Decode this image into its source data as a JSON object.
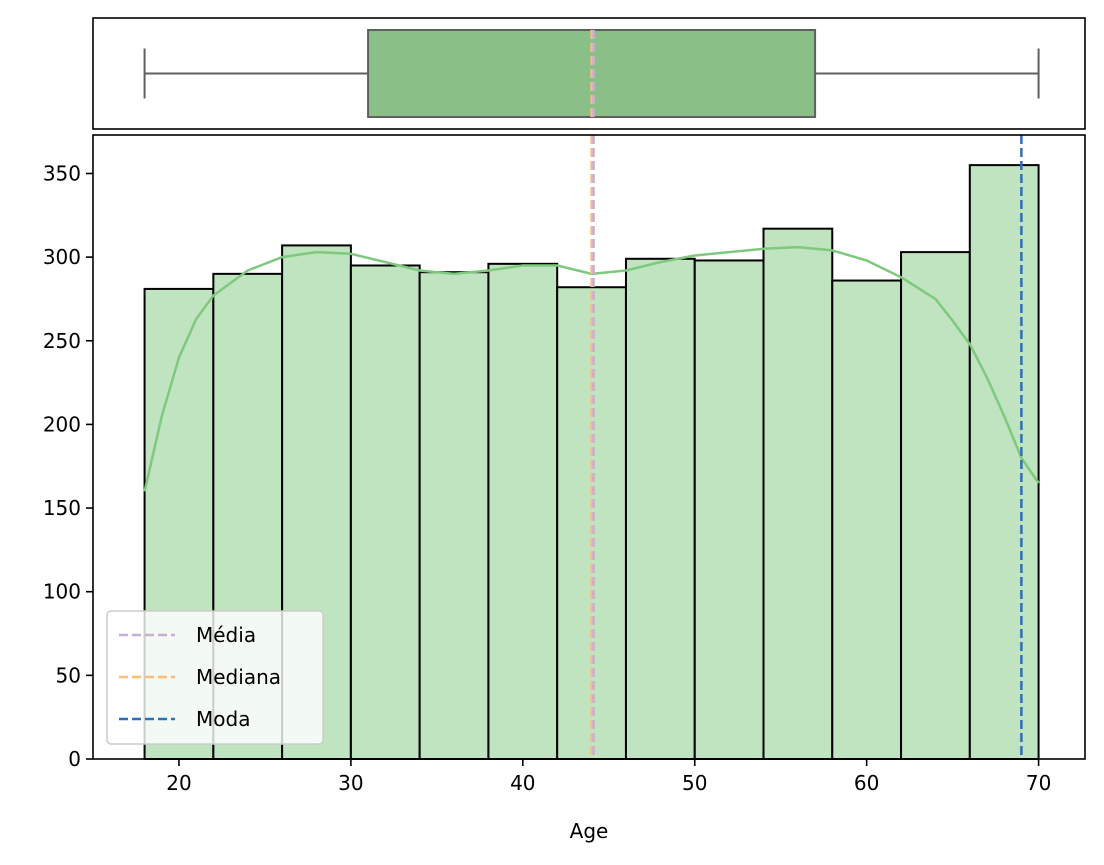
{
  "chart_data": {
    "type": "histogram",
    "xlabel": "Age",
    "ylabel": "",
    "xlim": [
      15,
      72.7
    ],
    "ylim": [
      0,
      373
    ],
    "xticks": [
      20,
      30,
      40,
      50,
      60,
      70
    ],
    "yticks": [
      0,
      50,
      100,
      150,
      200,
      250,
      300,
      350
    ],
    "grid": false,
    "bin_edges": [
      18,
      22,
      26,
      30,
      34,
      38,
      42,
      46,
      50,
      54,
      58,
      62,
      66,
      70
    ],
    "counts": [
      281,
      290,
      307,
      295,
      291,
      296,
      282,
      299,
      298,
      317,
      286,
      303,
      355
    ],
    "kde": {
      "x": [
        18,
        19,
        20,
        21,
        22,
        24,
        26,
        28,
        30,
        32,
        34,
        36,
        38,
        40,
        42,
        44,
        46,
        48,
        50,
        52,
        54,
        56,
        58,
        60,
        62,
        64,
        65,
        66,
        67,
        68,
        69,
        70
      ],
      "y": [
        160,
        205,
        240,
        263,
        277,
        292,
        300,
        303,
        302,
        297,
        292,
        290,
        292,
        295,
        295,
        290,
        292,
        297,
        301,
        303,
        305,
        306,
        304,
        298,
        288,
        275,
        262,
        248,
        228,
        205,
        180,
        165
      ]
    },
    "boxplot": {
      "whisker_low": 18,
      "q1": 31,
      "median": 44,
      "q3": 57,
      "whisker_high": 70,
      "mean": 44
    },
    "reference_lines": {
      "mean": 44,
      "median": 44,
      "mode": 69
    },
    "legend": {
      "placement": "lower-left",
      "entries": [
        {
          "label": "Média",
          "color": "#c5b0d5"
        },
        {
          "label": "Mediana",
          "color": "#ffbb78"
        },
        {
          "label": "Moda",
          "color": "#2f6eba"
        }
      ]
    },
    "colors": {
      "hist_fill": "#c0e3c0",
      "hist_edge": "#000000",
      "kde_line": "#7fc97f",
      "box_fill": "#8abf87",
      "box_edge": "#606060"
    }
  }
}
